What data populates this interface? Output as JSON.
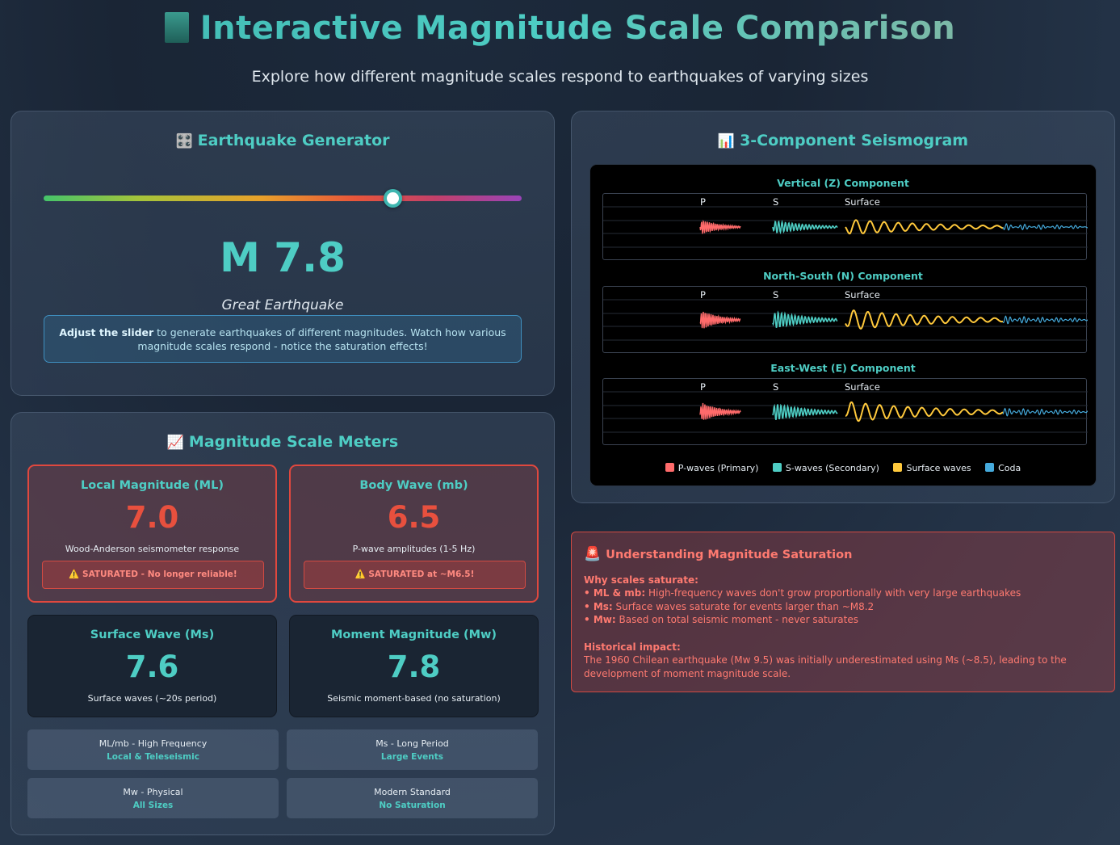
{
  "header": {
    "title": "Interactive Magnitude Scale Comparison",
    "subtitle": "Explore how different magnitude scales respond to earthquakes of varying sizes"
  },
  "generator": {
    "title": "Earthquake Generator",
    "icon": "control-knobs-icon",
    "slider_value_fraction": 0.73,
    "magnitude_label": "M 7.8",
    "class_label": "Great Earthquake",
    "info_bold": "Adjust the slider",
    "info_text": " to generate earthquakes of different magnitudes. Watch how various magnitude scales respond - notice the saturation effects!"
  },
  "meters": {
    "title": "Magnitude Scale Meters",
    "icon": "chart-increasing-icon",
    "ml": {
      "name": "Local Magnitude (ML)",
      "value": "7.0",
      "note": "Wood-Anderson seismometer response",
      "warning": "⚠️ SATURATED - No longer reliable!"
    },
    "mb": {
      "name": "Body Wave (mb)",
      "value": "6.5",
      "note": "P-wave amplitudes (1-5 Hz)",
      "warning": "⚠️ SATURATED at ~M6.5!"
    },
    "ms": {
      "name": "Surface Wave (Ms)",
      "value": "7.6",
      "note": "Surface waves (~20s period)"
    },
    "mw": {
      "name": "Moment Magnitude (Mw)",
      "value": "7.8",
      "note": "Seismic moment-based (no saturation)"
    },
    "tiles": [
      {
        "line1": "ML/mb - High Frequency",
        "line2": "Local & Teleseismic"
      },
      {
        "line1": "Ms - Long Period",
        "line2": "Large Events"
      },
      {
        "line1": "Mw - Physical",
        "line2": "All Sizes"
      },
      {
        "line1": "Modern Standard",
        "line2": "No Saturation"
      }
    ]
  },
  "seismogram": {
    "title": "3-Component Seismogram",
    "icon": "bar-chart-icon",
    "components": [
      {
        "title": "Vertical (Z) Component",
        "phases": [
          "P",
          "S",
          "Surface"
        ]
      },
      {
        "title": "North-South (N) Component",
        "phases": [
          "P",
          "S",
          "Surface"
        ]
      },
      {
        "title": "East-West (E) Component",
        "phases": [
          "P",
          "S",
          "Surface"
        ]
      }
    ],
    "legend": [
      {
        "label": "P-waves (Primary)",
        "color": "#ff6b6b"
      },
      {
        "label": "S-waves (Secondary)",
        "color": "#4ecdc4"
      },
      {
        "label": "Surface waves",
        "color": "#ffc93c"
      },
      {
        "label": "Coda",
        "color": "#45aadc"
      }
    ]
  },
  "saturation": {
    "title": "Understanding Magnitude Saturation",
    "icon": "siren-icon",
    "why_heading": "Why scales saturate:",
    "bullets": [
      {
        "bold": "• ML & mb:",
        "text": " High-frequency waves don't grow proportionally with very large earthquakes"
      },
      {
        "bold": "• Ms:",
        "text": " Surface waves saturate for events larger than ~M8.2"
      },
      {
        "bold": "• Mw:",
        "text": " Based on total seismic moment - never saturates"
      }
    ],
    "impact_heading": "Historical impact:",
    "impact_text": "The 1960 Chilean earthquake (Mw 9.5) was initially underestimated using Ms (~8.5), leading to the development of moment magnitude scale."
  }
}
